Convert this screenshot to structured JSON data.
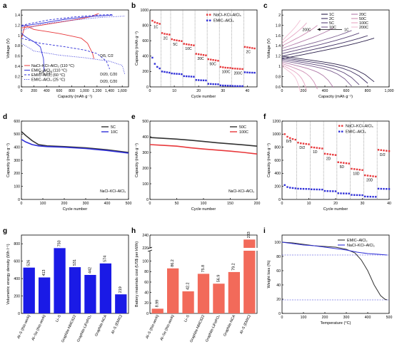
{
  "colors": {
    "red": "#e8383b",
    "blue": "#2f2fd8",
    "black": "#333333",
    "bar_blue": "#1a1ae6",
    "bar_red": "#f26a5a",
    "gray": "#555555"
  },
  "chart_data": [
    {
      "panel": "a",
      "type": "line",
      "xlabel": "Capacity (mAh g⁻¹)",
      "ylabel": "Voltage (V)",
      "xlim": [
        0,
        1700
      ],
      "ylim": [
        0,
        1.5
      ],
      "xticks": [
        0,
        200,
        400,
        600,
        800,
        1000,
        1200,
        1400,
        1600
      ],
      "yticks": [
        0,
        0.2,
        0.4,
        0.6,
        0.8,
        1.0,
        1.2,
        1.4
      ],
      "legend": [
        {
          "label": "NaCl–KCl–AlCl₃ (110 °C)",
          "color": "red",
          "dash": "solid"
        },
        {
          "label": "EMIC–AlCl₃ (110 °C)",
          "color": "blue",
          "dash": "solid"
        },
        {
          "label": "EMIC–AlCl₃ (60 °C)",
          "color": "blue",
          "dash": "dash"
        },
        {
          "label": "EMIC–AlCl₃ (25 °C)",
          "color": "blue",
          "dash": "dot"
        }
      ],
      "annotations": [
        "D/5, C/2",
        "D/5, C/2",
        "D/20, C/20",
        "D/20, C/20"
      ],
      "series": [
        {
          "color": "red",
          "dash": "solid",
          "x": [
            0,
            60,
            200,
            400,
            600,
            800,
            950,
            1050,
            1130,
            1150
          ],
          "y": [
            0.95,
            1.2,
            1.12,
            1.08,
            1.04,
            0.99,
            0.95,
            0.85,
            0.65,
            0.55
          ]
        },
        {
          "color": "red",
          "dash": "solid",
          "x": [
            0,
            300,
            600,
            900,
            1100,
            1200,
            1230
          ],
          "y": [
            1.15,
            1.2,
            1.26,
            1.32,
            1.37,
            1.42,
            1.43
          ]
        },
        {
          "color": "blue",
          "dash": "solid",
          "x": [
            0,
            40,
            100,
            200,
            300,
            350,
            360
          ],
          "y": [
            1.05,
            1.0,
            0.95,
            0.88,
            0.78,
            0.55,
            0.3
          ]
        },
        {
          "color": "blue",
          "dash": "solid",
          "x": [
            0,
            200,
            400,
            700,
            1000,
            1200,
            1450
          ],
          "y": [
            1.18,
            1.22,
            1.26,
            1.32,
            1.36,
            1.38,
            1.4
          ]
        },
        {
          "color": "blue",
          "dash": "dash",
          "x": [
            0,
            300,
            700,
            1000,
            1200,
            1350,
            1400
          ],
          "y": [
            0.95,
            0.85,
            0.78,
            0.72,
            0.65,
            0.5,
            0.35
          ]
        },
        {
          "color": "blue",
          "dash": "dash",
          "x": [
            0,
            400,
            800,
            1200,
            1450
          ],
          "y": [
            1.2,
            1.3,
            1.36,
            1.4,
            1.41
          ]
        },
        {
          "color": "blue",
          "dash": "dot",
          "x": [
            0,
            200,
            600,
            1000,
            1400,
            1600,
            1640
          ],
          "y": [
            0.85,
            0.7,
            0.62,
            0.57,
            0.5,
            0.42,
            0.25
          ]
        },
        {
          "color": "blue",
          "dash": "dot",
          "x": [
            0,
            300,
            800,
            1300,
            1650
          ],
          "y": [
            1.1,
            1.22,
            1.3,
            1.36,
            1.38
          ]
        }
      ]
    },
    {
      "panel": "b",
      "type": "scatter",
      "xlabel": "Cycle number",
      "ylabel": "Capacity (mAh g⁻¹)",
      "xlim": [
        0,
        44
      ],
      "ylim": [
        0,
        1000
      ],
      "xticks": [
        0,
        10,
        20,
        30,
        40
      ],
      "yticks": [
        0,
        200,
        400,
        600,
        800,
        1000
      ],
      "rates": [
        "1C",
        "2C",
        "5C",
        "10C",
        "20C",
        "50C",
        "100C",
        "200C",
        "2C"
      ],
      "rate_boundaries": [
        4,
        8,
        13,
        18,
        23,
        28,
        33,
        38
      ],
      "series": [
        {
          "name": "NaCl–KCl–AlCl₃",
          "color": "red",
          "y": [
            860,
            840,
            830,
            820,
            700,
            690,
            685,
            680,
            620,
            610,
            605,
            600,
            595,
            560,
            555,
            550,
            545,
            540,
            430,
            425,
            420,
            415,
            410,
            360,
            355,
            350,
            345,
            340,
            260,
            255,
            250,
            248,
            246,
            240,
            238,
            236,
            234,
            232,
            520,
            515,
            510,
            505,
            500
          ]
        },
        {
          "name": "EMIC–AlCl₃",
          "color": "blue",
          "y": [
            380,
            300,
            260,
            240,
            200,
            195,
            190,
            185,
            175,
            172,
            170,
            168,
            165,
            140,
            138,
            136,
            134,
            132,
            90,
            88,
            86,
            85,
            84,
            40,
            38,
            36,
            35,
            34,
            20,
            18,
            17,
            16,
            15,
            12,
            11,
            10,
            10,
            10,
            190,
            188,
            186,
            185,
            184
          ]
        }
      ]
    },
    {
      "panel": "c",
      "type": "line",
      "xlabel": "Capacity (mAh g⁻¹)",
      "ylabel": "Voltage (V)",
      "xlim": [
        0,
        1000
      ],
      "ylim": [
        0.6,
        2.1
      ],
      "xticks": [
        0,
        200,
        400,
        600,
        800,
        1000
      ],
      "yticks": [
        0.6,
        0.8,
        1.0,
        1.2,
        1.4,
        1.6,
        1.8,
        2.0
      ],
      "legend": [
        "1C",
        "2C",
        "5C",
        "10C",
        "20C",
        "50C",
        "100C",
        "200C"
      ],
      "legend_colors": [
        "#2a1f4a",
        "#3d2e60",
        "#5a4478",
        "#7a5d8e",
        "#b07aa8",
        "#cf8fb5",
        "#e6a6c4",
        "#f2bfd4"
      ],
      "arrow_labels": [
        "200C",
        "1C"
      ],
      "end_capacity": [
        860,
        800,
        720,
        650,
        480,
        330,
        230,
        170
      ]
    },
    {
      "panel": "d",
      "type": "line",
      "xlabel": "Cycle number",
      "ylabel": "Capacity (mAh g⁻¹)",
      "xlim": [
        0,
        500
      ],
      "ylim": [
        0,
        600
      ],
      "xticks": [
        0,
        100,
        200,
        300,
        400,
        500
      ],
      "yticks": [
        0,
        100,
        200,
        300,
        400,
        500,
        600
      ],
      "annotation": "NaCl–KCl–AlCl₃",
      "series": [
        {
          "name": "5C",
          "color": "black",
          "x": [
            0,
            20,
            50,
            80,
            120,
            200,
            300,
            400,
            500
          ],
          "y": [
            520,
            490,
            450,
            420,
            410,
            405,
            395,
            380,
            360
          ]
        },
        {
          "name": "10C",
          "color": "blue",
          "x": [
            0,
            20,
            50,
            80,
            120,
            200,
            300,
            400,
            500
          ],
          "y": [
            460,
            440,
            420,
            410,
            405,
            400,
            390,
            375,
            355
          ]
        }
      ]
    },
    {
      "panel": "e",
      "type": "line",
      "xlabel": "Cycle number",
      "ylabel": "Capacity (mAh g⁻¹)",
      "xlim": [
        0,
        200
      ],
      "ylim": [
        0,
        500
      ],
      "xticks": [
        0,
        50,
        100,
        150,
        200
      ],
      "yticks": [
        0,
        100,
        200,
        300,
        400,
        500
      ],
      "annotation": "NaCl–KCl–AlCl₃",
      "series": [
        {
          "name": "50C",
          "color": "black",
          "x": [
            0,
            25,
            50,
            75,
            100,
            125,
            150,
            175,
            200
          ],
          "y": [
            395,
            390,
            385,
            378,
            370,
            362,
            355,
            348,
            340
          ]
        },
        {
          "name": "100C",
          "color": "red",
          "x": [
            0,
            25,
            50,
            75,
            100,
            125,
            150,
            175,
            200
          ],
          "y": [
            350,
            345,
            340,
            330,
            322,
            315,
            308,
            300,
            290
          ]
        }
      ]
    },
    {
      "panel": "f",
      "type": "scatter",
      "xlabel": "Cycle number",
      "ylabel": "Capacity (mAh g⁻¹)",
      "xlim": [
        0,
        40
      ],
      "ylim": [
        0,
        1200
      ],
      "xticks": [
        0,
        10,
        20,
        30,
        40
      ],
      "yticks": [
        0,
        200,
        400,
        600,
        800,
        1000,
        1200
      ],
      "rates": [
        "D/5",
        "D/2",
        "1D",
        "2D",
        "5D",
        "10D",
        "20D",
        "D/2"
      ],
      "rate_boundaries": [
        5,
        10,
        15,
        20,
        25,
        30,
        35
      ],
      "series": [
        {
          "name": "NaCl–KCl–AlCl₃",
          "color": "red",
          "y": [
            1000,
            960,
            940,
            925,
            915,
            870,
            860,
            855,
            850,
            845,
            800,
            795,
            790,
            785,
            780,
            700,
            695,
            690,
            685,
            680,
            570,
            565,
            560,
            555,
            550,
            470,
            465,
            460,
            455,
            450,
            370,
            365,
            360,
            355,
            350,
            760,
            755,
            750,
            745,
            740
          ]
        },
        {
          "name": "EMIC–AlCl₃",
          "color": "blue",
          "y": [
            220,
            190,
            180,
            175,
            170,
            165,
            163,
            162,
            161,
            160,
            155,
            154,
            153,
            152,
            151,
            130,
            128,
            127,
            126,
            125,
            95,
            93,
            92,
            91,
            90,
            70,
            68,
            67,
            66,
            65,
            45,
            43,
            42,
            41,
            40,
            165,
            163,
            162,
            161,
            160
          ]
        }
      ]
    },
    {
      "panel": "g",
      "type": "bar",
      "ylabel": "Volumetric energy density (Wh l⁻¹)",
      "ylim": [
        0,
        900
      ],
      "yticks": [
        0,
        200,
        400,
        600,
        800
      ],
      "categories": [
        "Al–S (this work)",
        "Al–Se (this work)",
        "Li–S",
        "Graphite-NMC622",
        "Graphite-LiFePO₄",
        "Graphite-NCA",
        "Al–S (EMIC)"
      ],
      "values": [
        526,
        413,
        750,
        531,
        442,
        574,
        219
      ],
      "labels": [
        "526",
        "413",
        "750",
        "531",
        "442",
        "574",
        "219"
      ]
    },
    {
      "panel": "h",
      "type": "bar",
      "ylabel": "Battery materials cost (US$ per kWh)",
      "ylim_lower": [
        0,
        120
      ],
      "ylim_upper": [
        220,
        240
      ],
      "yticks_lower": [
        0,
        20,
        40,
        60,
        80,
        100
      ],
      "yticks_upper": [
        220,
        240
      ],
      "categories": [
        "Al–S (this work)",
        "Al–Se (this work)",
        "Li–S",
        "Graphite-NMC622",
        "Graphite-LiFePO₄",
        "Graphite-NCA",
        "Al–S (EMIC)"
      ],
      "values": [
        8.99,
        86.2,
        42.2,
        75.8,
        56.9,
        79.2,
        233
      ],
      "labels": [
        "8.99",
        "86.2",
        "42.2",
        "75.8",
        "56.9",
        "79.2",
        "233"
      ]
    },
    {
      "panel": "i",
      "type": "line",
      "xlabel": "Temperature (°C)",
      "ylabel": "Weight loss (%)",
      "xlim": [
        0,
        500
      ],
      "ylim": [
        0,
        110
      ],
      "xticks": [
        0,
        100,
        200,
        300,
        400,
        500
      ],
      "yticks": [
        0,
        20,
        40,
        60,
        80,
        100
      ],
      "series": [
        {
          "name": "EMIC–AlCl₃",
          "color": "black",
          "x": [
            0,
            50,
            100,
            150,
            200,
            250,
            300,
            340,
            370,
            400,
            430,
            460,
            480,
            490
          ],
          "y": [
            100,
            99,
            97,
            95,
            94,
            93,
            90,
            85,
            75,
            60,
            40,
            25,
            20,
            19
          ]
        },
        {
          "name": "NaCl–KCl–AlCl₃",
          "color": "blue",
          "x": [
            0,
            50,
            100,
            150,
            200,
            250,
            300,
            350,
            400,
            450,
            490
          ],
          "y": [
            100,
            98,
            96,
            95,
            93,
            91,
            89,
            86,
            84,
            83,
            82
          ]
        }
      ],
      "hlines": [
        82,
        19
      ]
    }
  ]
}
